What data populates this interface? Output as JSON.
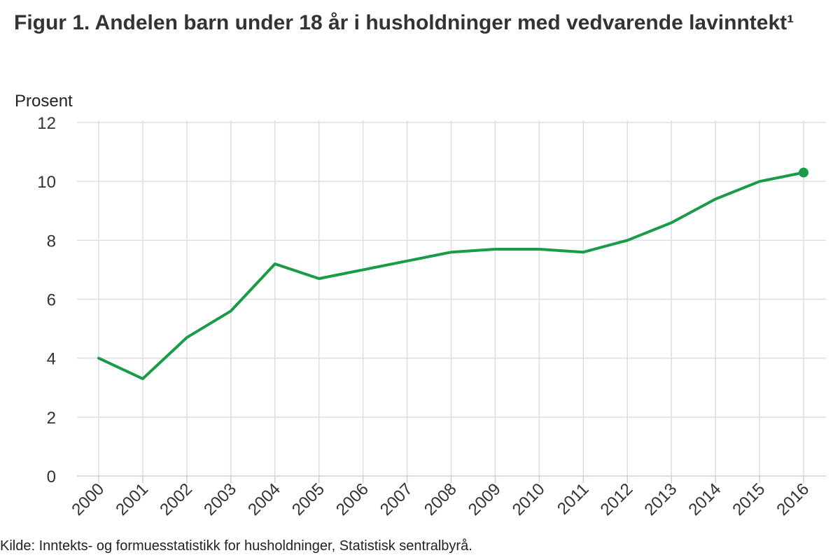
{
  "header": {
    "title": "Figur 1. Andelen barn under 18 år i husholdninger med vedvarende lavinntekt¹"
  },
  "footer": {
    "source": "Kilde: Inntekts- og formuesstatistikk for husholdninger, Statistisk sentralbyrå."
  },
  "colors": {
    "series": "#1a9b48",
    "grid": "#d9dee8",
    "axis": "#c8d0e0"
  },
  "chart_data": {
    "type": "line",
    "title": "Figur 1. Andelen barn under 18 år i husholdninger med vedvarende lavinntekt¹",
    "ylabel": "Prosent",
    "xlabel": "",
    "ylim": [
      0,
      12
    ],
    "yticks": [
      "0",
      "2",
      "4",
      "6",
      "8",
      "10",
      "12"
    ],
    "categories": [
      "2000",
      "2001",
      "2002",
      "2003",
      "2004",
      "2005",
      "2006",
      "2007",
      "2008",
      "2009",
      "2010",
      "2011",
      "2012",
      "2013",
      "2014",
      "2015",
      "2016"
    ],
    "series": [
      {
        "values": [
          4.0,
          3.3,
          4.7,
          5.6,
          7.2,
          6.7,
          7.0,
          7.3,
          7.6,
          7.7,
          7.7,
          7.6,
          8.0,
          8.6,
          9.4,
          10.0,
          10.3
        ]
      }
    ],
    "grid": true,
    "legend": "none",
    "last_point_marker": true
  }
}
